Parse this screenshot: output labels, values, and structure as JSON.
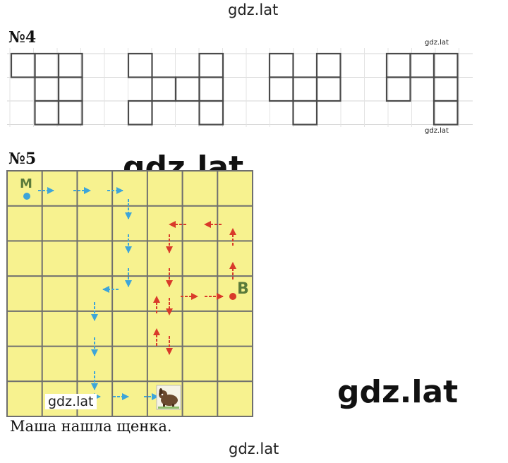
{
  "watermarks": {
    "top": "gdz.lat",
    "small_1": "gdz.lat",
    "small_2": "gdz.lat",
    "big_1": "gdz.lat",
    "big_2": "gdz.lat",
    "in_map": "gdz.lat",
    "bottom": "gdz.lat"
  },
  "task4": {
    "label": "№4",
    "figures": [
      [
        [
          0,
          0
        ],
        [
          1,
          0
        ],
        [
          2,
          0
        ],
        [
          1,
          1
        ],
        [
          2,
          1
        ],
        [
          1,
          2
        ],
        [
          2,
          2
        ]
      ],
      [
        [
          0,
          0
        ],
        [
          0,
          2
        ],
        [
          1,
          1
        ],
        [
          2,
          1
        ],
        [
          3,
          0
        ],
        [
          3,
          1
        ],
        [
          3,
          2
        ]
      ],
      [
        [
          0,
          0
        ],
        [
          0,
          1
        ],
        [
          1,
          1
        ],
        [
          2,
          0
        ],
        [
          2,
          1
        ],
        [
          1,
          2
        ]
      ],
      [
        [
          0,
          0
        ],
        [
          0,
          1
        ],
        [
          1,
          0
        ],
        [
          2,
          0
        ],
        [
          2,
          1
        ],
        [
          2,
          2
        ]
      ]
    ]
  },
  "task5": {
    "label": "№5",
    "grid": {
      "cols": 7,
      "rows": 7
    },
    "start_label": "М",
    "end_label": "В",
    "colors": {
      "blue": "#3da5d9",
      "red": "#d93a2a",
      "map": "#f7f28f",
      "grid": "#6f6f6f"
    },
    "puppy_icon": "puppy-picture",
    "answer": "Маша нашла щенка."
  }
}
